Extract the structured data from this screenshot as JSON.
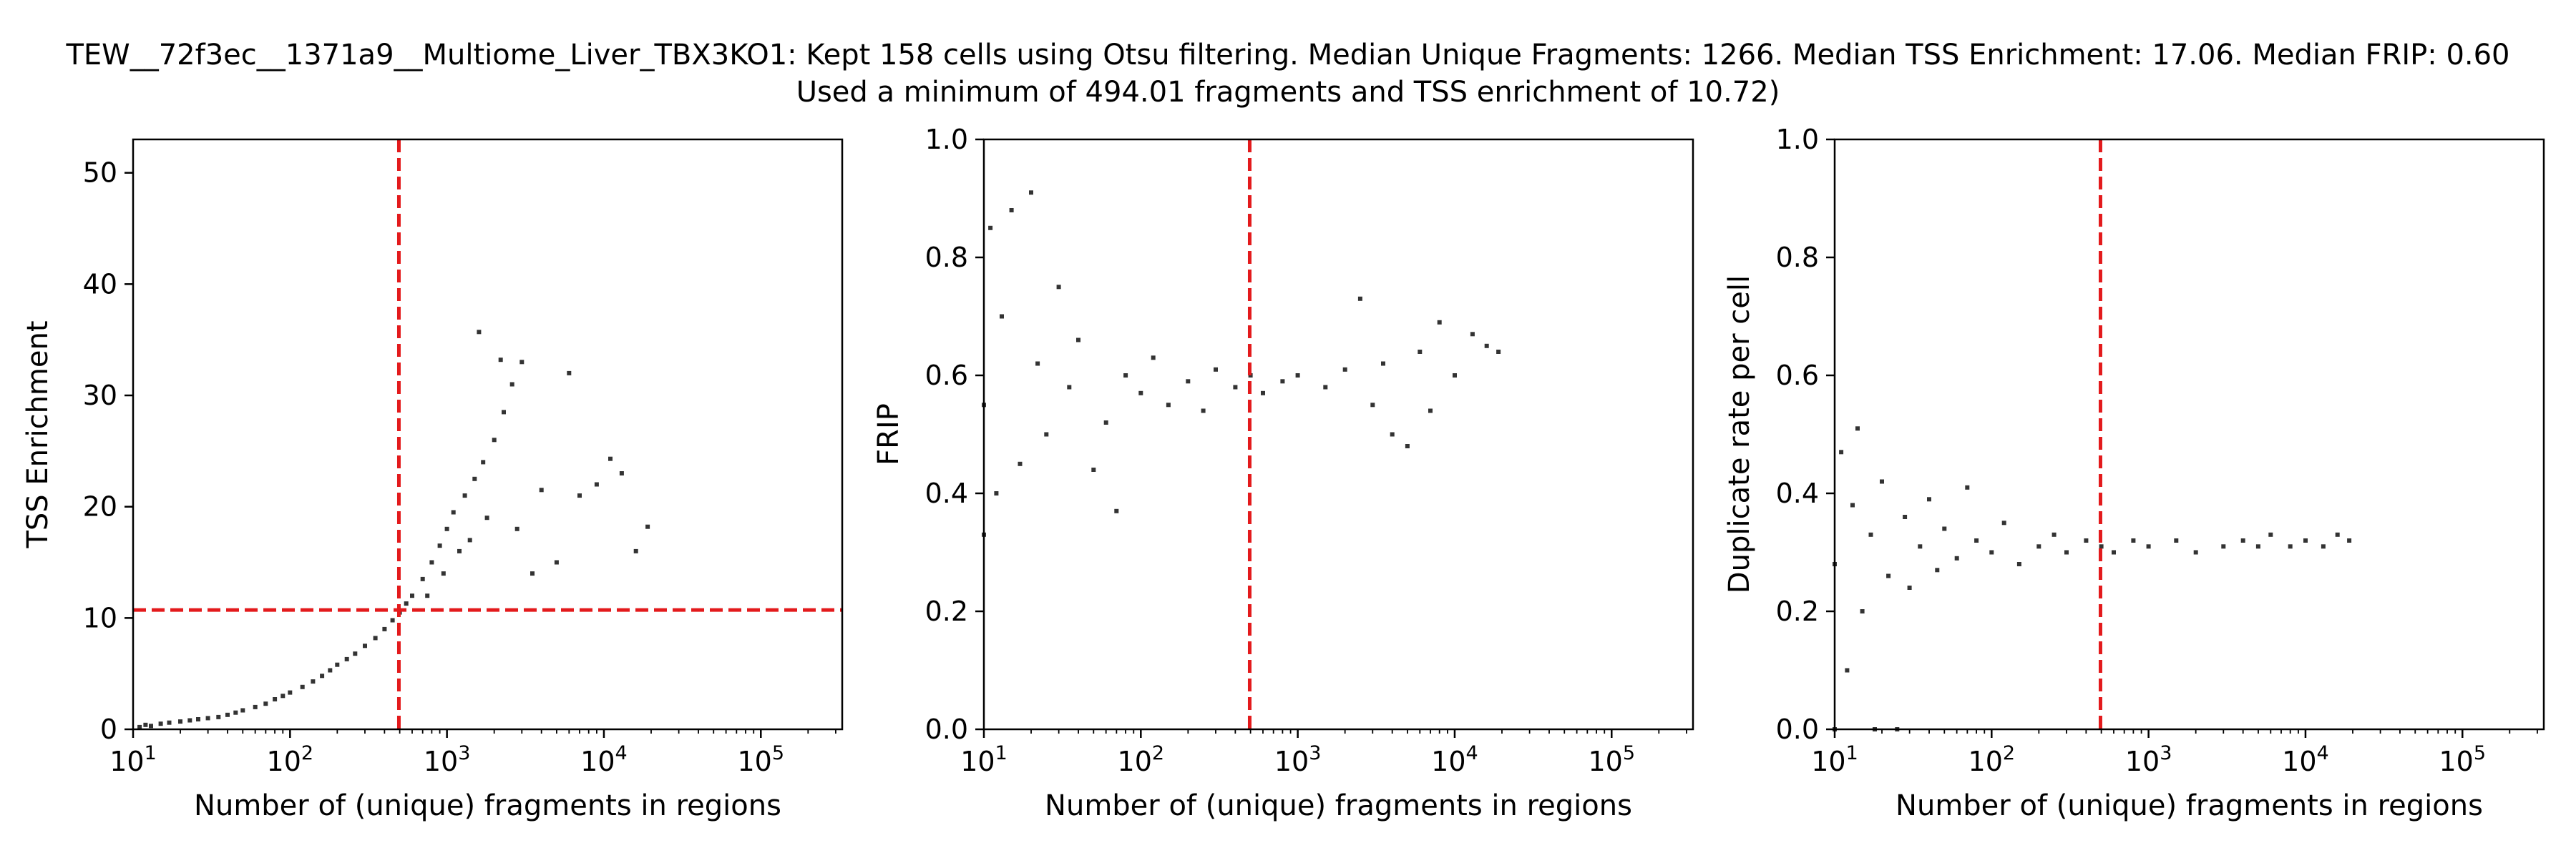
{
  "figure": {
    "title_line1": "TEW__72f3ec__1371a9__Multiome_Liver_TBX3KO1: Kept 158 cells using Otsu filtering. Median Unique Fragments: 1266. Median TSS Enrichment: 17.06. Median FRIP: 0.60",
    "title_line2": "Used a minimum of 494.01 fragments and TSS enrichment of 10.72)"
  },
  "colors": {
    "points": "#333333",
    "threshold": "#e31a1c",
    "axes": "#000000"
  },
  "chart_data": [
    {
      "type": "scatter",
      "xlabel": "Number of (unique) fragments in regions",
      "ylabel": "TSS Enrichment",
      "xscale": "log",
      "xlim": [
        10,
        330000
      ],
      "ylim": [
        0,
        53
      ],
      "xticks": [
        {
          "value": 10,
          "base": "10",
          "exp": "1"
        },
        {
          "value": 100,
          "base": "10",
          "exp": "2"
        },
        {
          "value": 1000,
          "base": "10",
          "exp": "3"
        },
        {
          "value": 10000,
          "base": "10",
          "exp": "4"
        },
        {
          "value": 100000,
          "base": "10",
          "exp": "5"
        }
      ],
      "yticks": [
        {
          "value": 0,
          "label": "0"
        },
        {
          "value": 10,
          "label": "10"
        },
        {
          "value": 20,
          "label": "20"
        },
        {
          "value": 30,
          "label": "30"
        },
        {
          "value": 40,
          "label": "40"
        },
        {
          "value": 50,
          "label": "50"
        }
      ],
      "thresholds": {
        "x": 494.01,
        "y": 10.72
      },
      "points": [
        [
          11,
          0.2
        ],
        [
          12,
          0.4
        ],
        [
          13,
          0.3
        ],
        [
          15,
          0.5
        ],
        [
          17,
          0.6
        ],
        [
          20,
          0.7
        ],
        [
          23,
          0.8
        ],
        [
          26,
          0.9
        ],
        [
          30,
          1.0
        ],
        [
          35,
          1.1
        ],
        [
          40,
          1.3
        ],
        [
          45,
          1.5
        ],
        [
          50,
          1.7
        ],
        [
          60,
          2.0
        ],
        [
          70,
          2.3
        ],
        [
          80,
          2.7
        ],
        [
          90,
          3.0
        ],
        [
          100,
          3.3
        ],
        [
          120,
          3.8
        ],
        [
          140,
          4.3
        ],
        [
          160,
          4.8
        ],
        [
          180,
          5.3
        ],
        [
          200,
          5.8
        ],
        [
          230,
          6.3
        ],
        [
          260,
          6.8
        ],
        [
          300,
          7.5
        ],
        [
          350,
          8.2
        ],
        [
          400,
          9.0
        ],
        [
          450,
          9.8
        ],
        [
          500,
          10.5
        ],
        [
          550,
          11.3
        ],
        [
          600,
          12.0
        ],
        [
          700,
          13.5
        ],
        [
          800,
          15.0
        ],
        [
          900,
          16.5
        ],
        [
          1000,
          18.0
        ],
        [
          1100,
          19.5
        ],
        [
          1300,
          21.0
        ],
        [
          1500,
          22.5
        ],
        [
          1700,
          24.0
        ],
        [
          2000,
          26.0
        ],
        [
          2300,
          28.5
        ],
        [
          2600,
          31.0
        ],
        [
          3000,
          33.0
        ],
        [
          1600,
          35.7
        ],
        [
          2200,
          33.2
        ],
        [
          6000,
          32.0
        ],
        [
          4000,
          21.5
        ],
        [
          7000,
          21.0
        ],
        [
          9000,
          22.0
        ],
        [
          11000,
          24.3
        ],
        [
          13000,
          23.0
        ],
        [
          16000,
          16.0
        ],
        [
          19000,
          18.2
        ],
        [
          5000,
          15.0
        ],
        [
          3500,
          14.0
        ],
        [
          2800,
          18.0
        ],
        [
          1800,
          19.0
        ],
        [
          1400,
          17.0
        ],
        [
          1200,
          16.0
        ],
        [
          950,
          14.0
        ],
        [
          750,
          12.0
        ]
      ]
    },
    {
      "type": "scatter",
      "xlabel": "Number of (unique) fragments in regions",
      "ylabel": "FRIP",
      "xscale": "log",
      "xlim": [
        10,
        330000
      ],
      "ylim": [
        0,
        1
      ],
      "xticks": [
        {
          "value": 10,
          "base": "10",
          "exp": "1"
        },
        {
          "value": 100,
          "base": "10",
          "exp": "2"
        },
        {
          "value": 1000,
          "base": "10",
          "exp": "3"
        },
        {
          "value": 10000,
          "base": "10",
          "exp": "4"
        },
        {
          "value": 100000,
          "base": "10",
          "exp": "5"
        }
      ],
      "yticks": [
        {
          "value": 0,
          "label": "0.0"
        },
        {
          "value": 0.2,
          "label": "0.2"
        },
        {
          "value": 0.4,
          "label": "0.4"
        },
        {
          "value": 0.6,
          "label": "0.6"
        },
        {
          "value": 0.8,
          "label": "0.8"
        },
        {
          "value": 1.0,
          "label": "1.0"
        }
      ],
      "thresholds": {
        "x": 494.01
      },
      "points": [
        [
          10,
          0.33
        ],
        [
          10,
          0.55
        ],
        [
          11,
          0.85
        ],
        [
          12,
          0.4
        ],
        [
          13,
          0.7
        ],
        [
          15,
          0.88
        ],
        [
          17,
          0.45
        ],
        [
          20,
          0.91
        ],
        [
          22,
          0.62
        ],
        [
          25,
          0.5
        ],
        [
          30,
          0.75
        ],
        [
          35,
          0.58
        ],
        [
          40,
          0.66
        ],
        [
          50,
          0.44
        ],
        [
          60,
          0.52
        ],
        [
          70,
          0.37
        ],
        [
          80,
          0.6
        ],
        [
          100,
          0.57
        ],
        [
          120,
          0.63
        ],
        [
          150,
          0.55
        ],
        [
          200,
          0.59
        ],
        [
          250,
          0.54
        ],
        [
          300,
          0.61
        ],
        [
          400,
          0.58
        ],
        [
          500,
          0.6
        ],
        [
          600,
          0.57
        ],
        [
          800,
          0.59
        ],
        [
          1000,
          0.6
        ],
        [
          1500,
          0.58
        ],
        [
          2000,
          0.61
        ],
        [
          2500,
          0.73
        ],
        [
          3000,
          0.55
        ],
        [
          4000,
          0.5
        ],
        [
          5000,
          0.48
        ],
        [
          6000,
          0.64
        ],
        [
          8000,
          0.69
        ],
        [
          10000,
          0.6
        ],
        [
          13000,
          0.67
        ],
        [
          16000,
          0.65
        ],
        [
          19000,
          0.64
        ],
        [
          7000,
          0.54
        ],
        [
          3500,
          0.62
        ]
      ]
    },
    {
      "type": "scatter",
      "xlabel": "Number of (unique) fragments in regions",
      "ylabel": "Duplicate rate per cell",
      "xscale": "log",
      "xlim": [
        10,
        330000
      ],
      "ylim": [
        0,
        1
      ],
      "xticks": [
        {
          "value": 10,
          "base": "10",
          "exp": "1"
        },
        {
          "value": 100,
          "base": "10",
          "exp": "2"
        },
        {
          "value": 1000,
          "base": "10",
          "exp": "3"
        },
        {
          "value": 10000,
          "base": "10",
          "exp": "4"
        },
        {
          "value": 100000,
          "base": "10",
          "exp": "5"
        }
      ],
      "yticks": [
        {
          "value": 0,
          "label": "0.0"
        },
        {
          "value": 0.2,
          "label": "0.2"
        },
        {
          "value": 0.4,
          "label": "0.4"
        },
        {
          "value": 0.6,
          "label": "0.6"
        },
        {
          "value": 0.8,
          "label": "0.8"
        },
        {
          "value": 1.0,
          "label": "1.0"
        }
      ],
      "thresholds": {
        "x": 494.01
      },
      "points": [
        [
          10,
          0.0
        ],
        [
          10,
          0.28
        ],
        [
          11,
          0.47
        ],
        [
          12,
          0.1
        ],
        [
          13,
          0.38
        ],
        [
          14,
          0.51
        ],
        [
          15,
          0.2
        ],
        [
          17,
          0.33
        ],
        [
          18,
          0.0
        ],
        [
          20,
          0.42
        ],
        [
          22,
          0.26
        ],
        [
          25,
          0.0
        ],
        [
          28,
          0.36
        ],
        [
          30,
          0.24
        ],
        [
          35,
          0.31
        ],
        [
          40,
          0.39
        ],
        [
          45,
          0.27
        ],
        [
          50,
          0.34
        ],
        [
          60,
          0.29
        ],
        [
          70,
          0.41
        ],
        [
          80,
          0.32
        ],
        [
          100,
          0.3
        ],
        [
          120,
          0.35
        ],
        [
          150,
          0.28
        ],
        [
          200,
          0.31
        ],
        [
          250,
          0.33
        ],
        [
          300,
          0.3
        ],
        [
          400,
          0.32
        ],
        [
          500,
          0.31
        ],
        [
          600,
          0.3
        ],
        [
          800,
          0.32
        ],
        [
          1000,
          0.31
        ],
        [
          1500,
          0.32
        ],
        [
          2000,
          0.3
        ],
        [
          3000,
          0.31
        ],
        [
          4000,
          0.32
        ],
        [
          5000,
          0.31
        ],
        [
          6000,
          0.33
        ],
        [
          8000,
          0.31
        ],
        [
          10000,
          0.32
        ],
        [
          13000,
          0.31
        ],
        [
          16000,
          0.33
        ],
        [
          19000,
          0.32
        ]
      ]
    }
  ]
}
